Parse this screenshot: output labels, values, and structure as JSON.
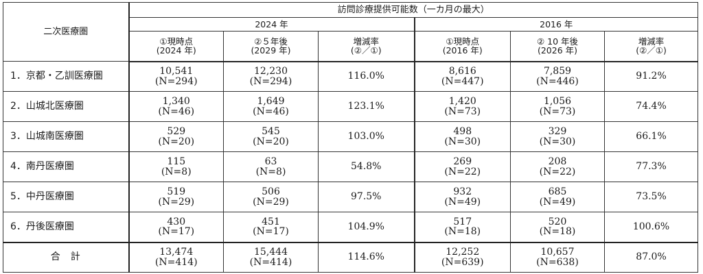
{
  "header": {
    "area_col": "二次医療圏",
    "title": "訪問診療提供可能数（一カ月の最大）",
    "group_2024": "2024 年",
    "group_2016": "2016 年",
    "cols_2024": [
      {
        "line1": "①現時点",
        "line2": "(2024 年)"
      },
      {
        "line1": "②５年後",
        "line2": "(2029 年)"
      },
      {
        "line1": "増減率",
        "line2": "(②／①)"
      }
    ],
    "cols_2016": [
      {
        "line1": "①現時点",
        "line2": "(2016 年)"
      },
      {
        "line1": "② 10 年後",
        "line2": "(2026 年)"
      },
      {
        "line1": "増減率",
        "line2": "(②／①)"
      }
    ]
  },
  "rows": [
    {
      "area": "1．京都・乙訓医療圏",
      "c2024_now": "10,541",
      "c2024_now_n": "(N=294)",
      "c2024_fut": "12,230",
      "c2024_fut_n": "(N=294)",
      "c2024_rate": "116.0%",
      "c2016_now": "8,616",
      "c2016_now_n": "(N=447)",
      "c2016_fut": "7,859",
      "c2016_fut_n": "(N=446)",
      "c2016_rate": "91.2%"
    },
    {
      "area": "2．山城北医療圏",
      "c2024_now": "1,340",
      "c2024_now_n": "(N=46)",
      "c2024_fut": "1,649",
      "c2024_fut_n": "(N=46)",
      "c2024_rate": "123.1%",
      "c2016_now": "1,420",
      "c2016_now_n": "(N=73)",
      "c2016_fut": "1,056",
      "c2016_fut_n": "(N=73)",
      "c2016_rate": "74.4%"
    },
    {
      "area": "3．山城南医療圏",
      "c2024_now": "529",
      "c2024_now_n": "(N=20)",
      "c2024_fut": "545",
      "c2024_fut_n": "(N=20)",
      "c2024_rate": "103.0%",
      "c2016_now": "498",
      "c2016_now_n": "(N=30)",
      "c2016_fut": "329",
      "c2016_fut_n": "(N=30)",
      "c2016_rate": "66.1%"
    },
    {
      "area": "4．南丹医療圏",
      "c2024_now": "115",
      "c2024_now_n": "(N=8)",
      "c2024_fut": "63",
      "c2024_fut_n": "(N=8)",
      "c2024_rate": "54.8%",
      "c2016_now": "269",
      "c2016_now_n": "(N=22)",
      "c2016_fut": "208",
      "c2016_fut_n": "(N=22)",
      "c2016_rate": "77.3%"
    },
    {
      "area": "5．中丹医療圏",
      "c2024_now": "519",
      "c2024_now_n": "(N=29)",
      "c2024_fut": "506",
      "c2024_fut_n": "(N=29)",
      "c2024_rate": "97.5%",
      "c2016_now": "932",
      "c2016_now_n": "(N=49)",
      "c2016_fut": "685",
      "c2016_fut_n": "(N=49)",
      "c2016_rate": "73.5%"
    },
    {
      "area": "6．丹後医療圏",
      "c2024_now": "430",
      "c2024_now_n": "(N=17)",
      "c2024_fut": "451",
      "c2024_fut_n": "(N=17)",
      "c2024_rate": "104.9%",
      "c2016_now": "517",
      "c2016_now_n": "(N=18)",
      "c2016_fut": "520",
      "c2016_fut_n": "(N=18)",
      "c2016_rate": "100.6%"
    }
  ],
  "total": {
    "label_a": "合",
    "label_b": "計",
    "c2024_now": "13,474",
    "c2024_now_n": "(N=414)",
    "c2024_fut": "15,444",
    "c2024_fut_n": "(N=414)",
    "c2024_rate": "114.6%",
    "c2016_now": "12,252",
    "c2016_now_n": "(N=639)",
    "c2016_fut": "10,657",
    "c2016_fut_n": "(N=638)",
    "c2016_rate": "87.0%"
  }
}
